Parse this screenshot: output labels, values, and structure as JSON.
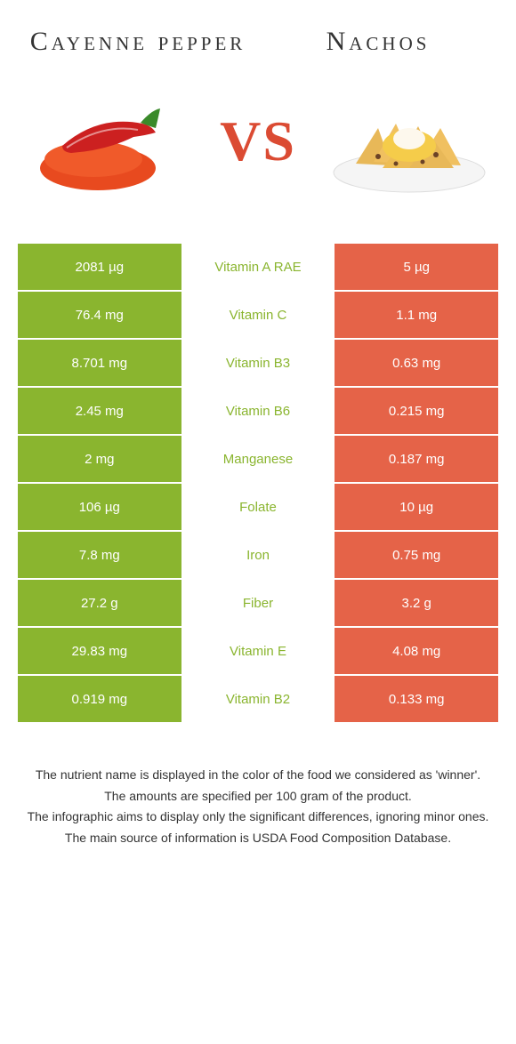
{
  "colors": {
    "left": "#8ab52f",
    "right": "#e56348",
    "mid_text_winner_left": "#8ab52f",
    "name_color": "#333"
  },
  "left_name": "Cayenne pepper",
  "right_name": "Nachos",
  "vs": "VS",
  "rows": [
    {
      "left": "2081 µg",
      "nutrient": "Vitamin A RAE",
      "right": "5 µg",
      "winner": "left"
    },
    {
      "left": "76.4 mg",
      "nutrient": "Vitamin C",
      "right": "1.1 mg",
      "winner": "left"
    },
    {
      "left": "8.701 mg",
      "nutrient": "Vitamin B3",
      "right": "0.63 mg",
      "winner": "left"
    },
    {
      "left": "2.45 mg",
      "nutrient": "Vitamin B6",
      "right": "0.215 mg",
      "winner": "left"
    },
    {
      "left": "2 mg",
      "nutrient": "Manganese",
      "right": "0.187 mg",
      "winner": "left"
    },
    {
      "left": "106 µg",
      "nutrient": "Folate",
      "right": "10 µg",
      "winner": "left"
    },
    {
      "left": "7.8 mg",
      "nutrient": "Iron",
      "right": "0.75 mg",
      "winner": "left"
    },
    {
      "left": "27.2 g",
      "nutrient": "Fiber",
      "right": "3.2 g",
      "winner": "left"
    },
    {
      "left": "29.83 mg",
      "nutrient": "Vitamin E",
      "right": "4.08 mg",
      "winner": "left"
    },
    {
      "left": "0.919 mg",
      "nutrient": "Vitamin B2",
      "right": "0.133 mg",
      "winner": "left"
    }
  ],
  "footnotes": [
    "The nutrient name is displayed in the color of the food we considered as 'winner'.",
    "The amounts are specified per 100 gram of the product.",
    "The infographic aims to display only the significant differences, ignoring minor ones.",
    "The main source of information is USDA Food Composition Database."
  ]
}
